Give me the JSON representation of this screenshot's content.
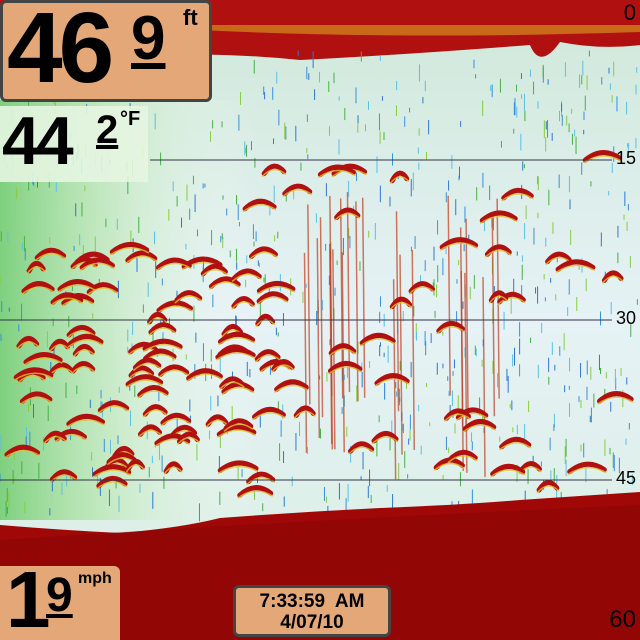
{
  "depth": {
    "whole": "46",
    "tenth": "9",
    "unit": "ft"
  },
  "temperature": {
    "whole": "44",
    "tenth": "2",
    "unit": "°F"
  },
  "speed": {
    "whole": "1",
    "tenth": "9",
    "unit": "mph"
  },
  "clock": {
    "time": "7:33:59  AM",
    "date": "4/07/10"
  },
  "depth_scale": [
    "0",
    "15",
    "30",
    "45",
    "60"
  ]
}
